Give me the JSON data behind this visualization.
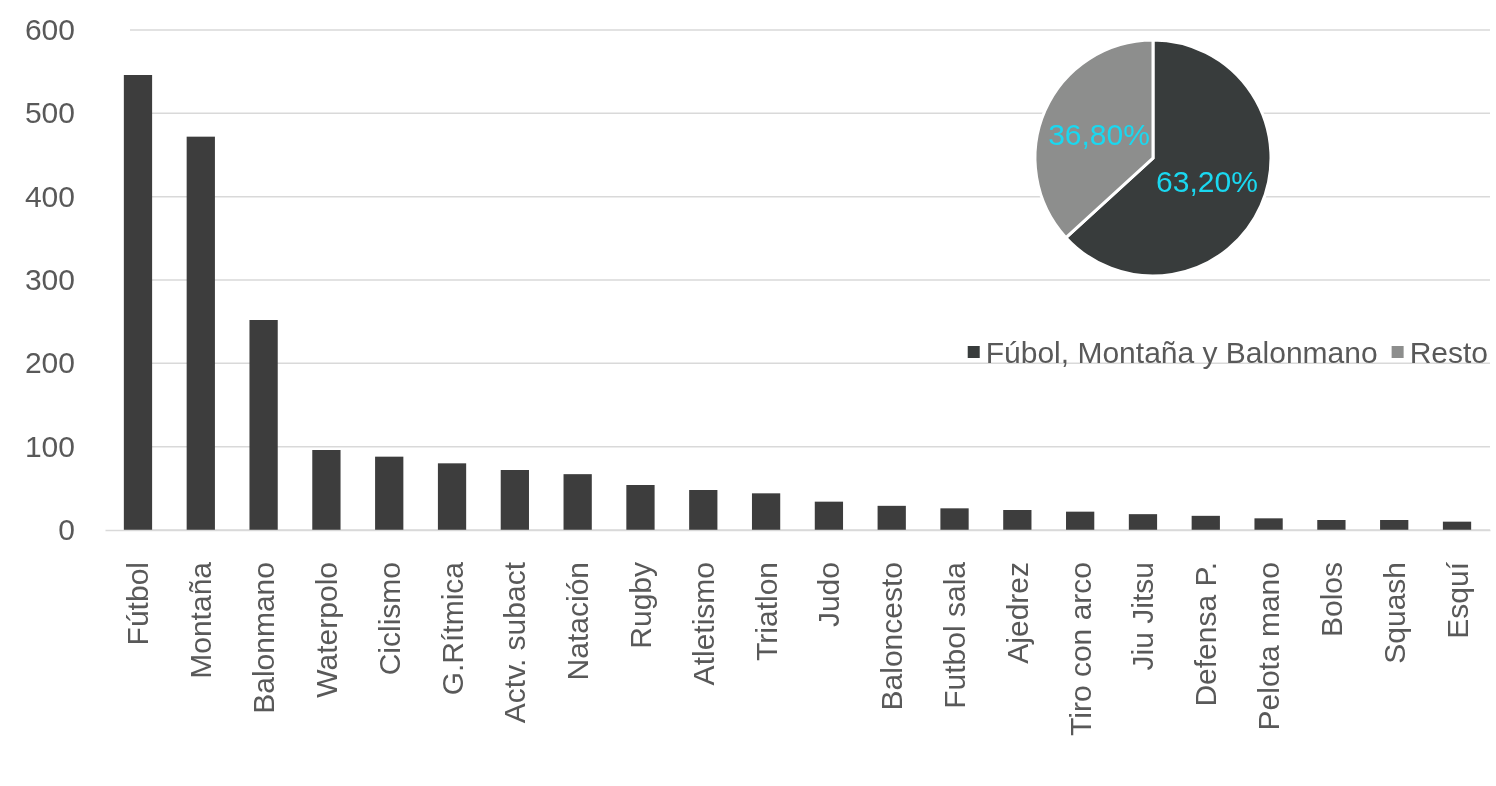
{
  "chart_data": [
    {
      "type": "bar",
      "categories": [
        "Fútbol",
        "Montaña",
        "Balonmano",
        "Waterpolo",
        "Ciclismo",
        "G.Rítmica",
        "Actv. subact",
        "Natación",
        "Rugby",
        "Atletismo",
        "Triatlon",
        "Judo",
        "Baloncesto",
        "Futbol sala",
        "Ajedrez",
        "Tiro con arco",
        "Jiu Jitsu",
        "Defensa P.",
        "Pelota mano",
        "Bolos",
        "Squash",
        "Esquí"
      ],
      "values": [
        546,
        472,
        252,
        96,
        88,
        80,
        72,
        67,
        54,
        48,
        44,
        34,
        29,
        26,
        24,
        22,
        19,
        17,
        14,
        12,
        12,
        10
      ],
      "color": "#3d3d3d",
      "ylim": [
        0,
        600
      ],
      "yticks": [
        0,
        100,
        200,
        300,
        400,
        500,
        600
      ],
      "grid": "y"
    },
    {
      "type": "pie",
      "categories": [
        "Fúbol, Montaña y Balonmano",
        "Resto"
      ],
      "values": [
        63.2,
        36.8
      ],
      "colors": [
        "#383c3c",
        "#8d8e8d"
      ],
      "value_labels": [
        "63,20%",
        "36,80%"
      ],
      "legend": "bottom"
    }
  ]
}
